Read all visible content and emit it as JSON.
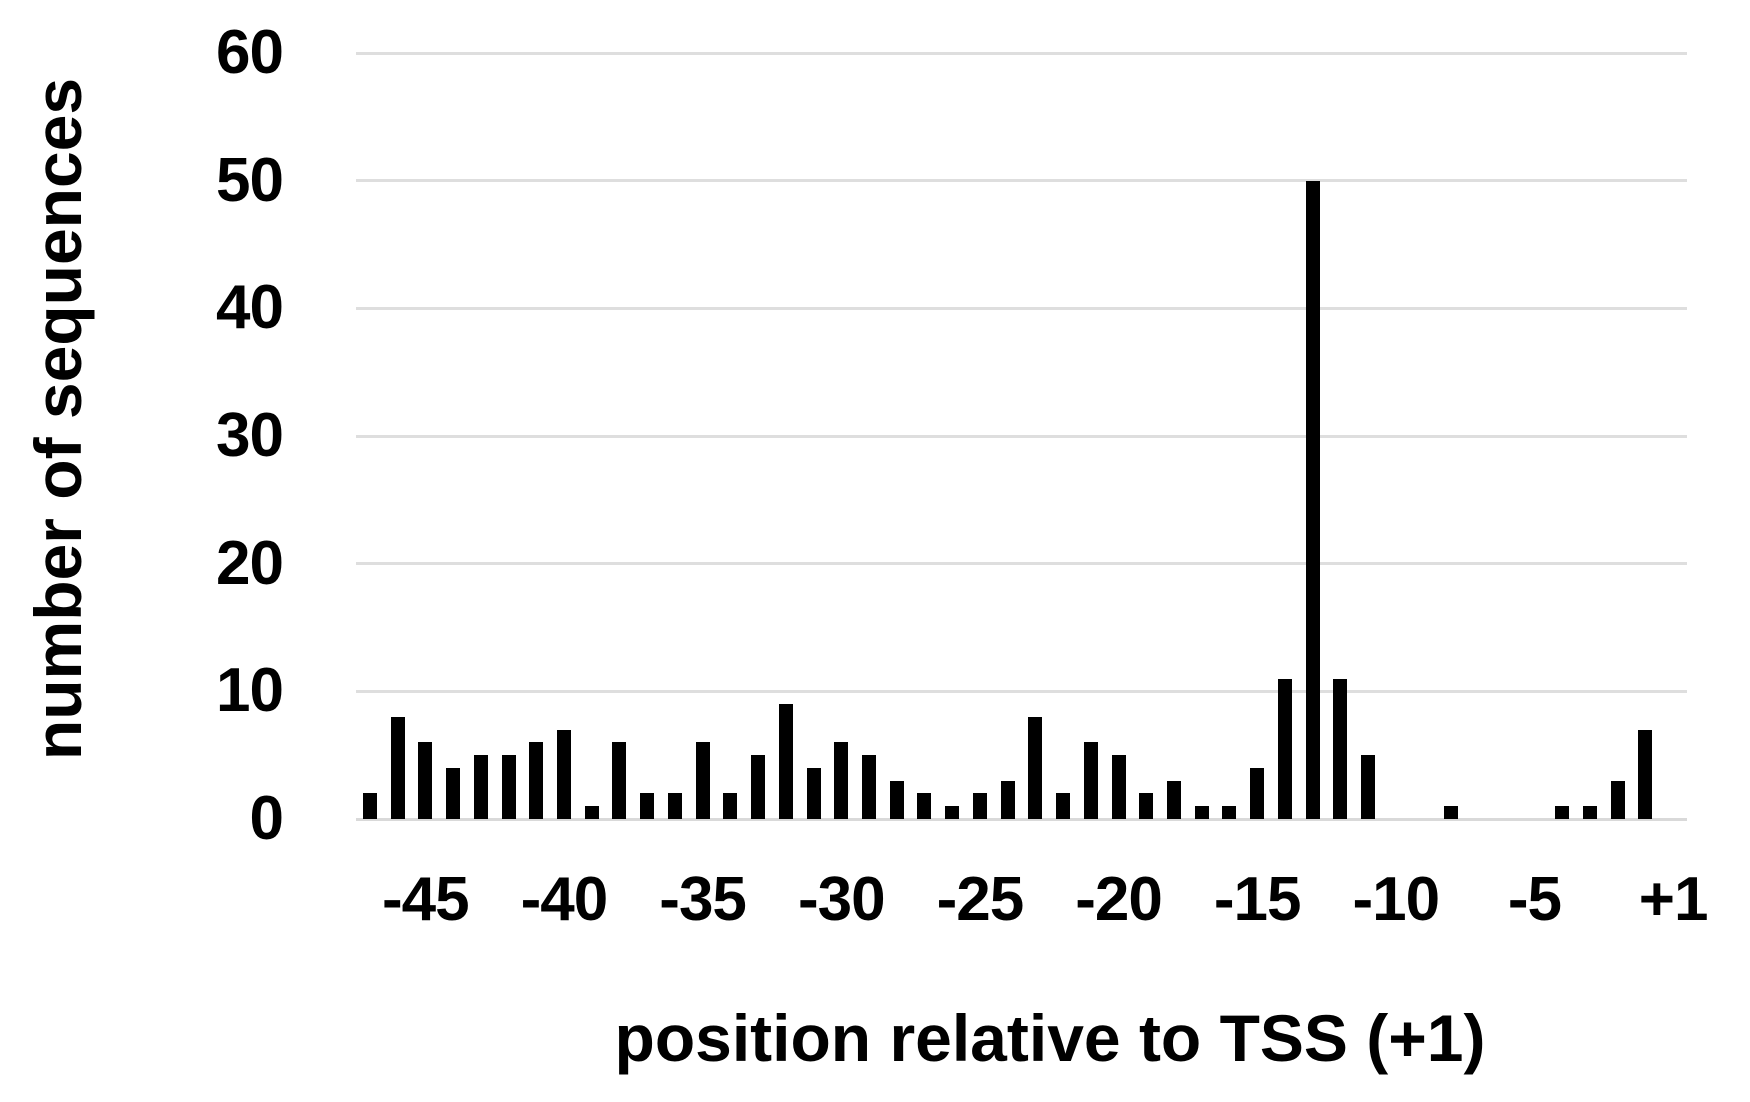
{
  "chart_data": {
    "type": "bar",
    "title": "",
    "xlabel": "position relative to TSS (+1)",
    "ylabel": "number of sequences",
    "categories": [
      "-47",
      "-46",
      "-45",
      "-44",
      "-43",
      "-42",
      "-41",
      "-40",
      "-39",
      "-38",
      "-37",
      "-36",
      "-35",
      "-34",
      "-33",
      "-32",
      "-31",
      "-30",
      "-29",
      "-28",
      "-27",
      "-26",
      "-25",
      "-24",
      "-23",
      "-22",
      "-21",
      "-20",
      "-19",
      "-18",
      "-17",
      "-16",
      "-15",
      "-14",
      "-13",
      "-12",
      "-11",
      "-10",
      "-9",
      "-8",
      "-7",
      "-6",
      "-5",
      "-4",
      "-3",
      "-2",
      "-1",
      "+1"
    ],
    "values": [
      2,
      8,
      6,
      4,
      5,
      5,
      6,
      7,
      1,
      6,
      2,
      2,
      6,
      2,
      5,
      9,
      4,
      6,
      5,
      3,
      2,
      1,
      2,
      3,
      8,
      2,
      6,
      5,
      2,
      3,
      1,
      1,
      4,
      11,
      50,
      11,
      5,
      0,
      0,
      1,
      0,
      0,
      0,
      1,
      1,
      3,
      7,
      0
    ],
    "ylim": [
      0,
      60
    ],
    "yticks": [
      0,
      10,
      20,
      30,
      40,
      50,
      60
    ],
    "xticks_shown": [
      "-45",
      "-40",
      "-35",
      "-30",
      "-25",
      "-20",
      "-15",
      "-10",
      "-5",
      "+1"
    ],
    "grid": "horizontal",
    "legend_position": "none",
    "bar_color": "#000000",
    "gridline_color": "#dedede",
    "axis_line_color": "#d9d9d9",
    "background_color": "#ffffff"
  }
}
